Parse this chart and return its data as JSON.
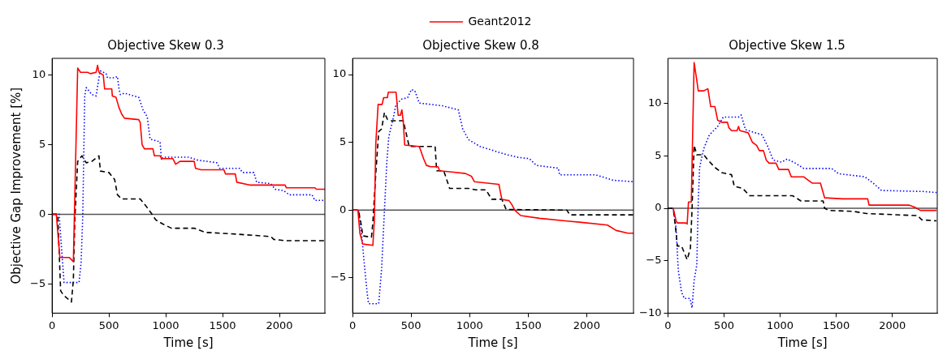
{
  "chart_data": [
    {
      "type": "line",
      "title": "Objective Skew 0.3",
      "xlabel": "Time [s]",
      "ylabel": "Objective Gap Improvement [%]",
      "xlim": [
        0,
        2400
      ],
      "xticks": [
        0,
        500,
        1000,
        1500,
        2000
      ],
      "ylim": [
        -7.1,
        11.2
      ],
      "yticks": [
        -5,
        0,
        5,
        10
      ],
      "grid": false,
      "marker": "none",
      "ref_lines": [
        {
          "axis": "y",
          "value": 0,
          "color": "#555555"
        }
      ],
      "series": [
        {
          "color": "#ff0000",
          "line_style": "solid",
          "x": [
            0,
            37,
            68,
            150,
            187,
            225,
            250,
            312,
            337,
            387,
            400,
            412,
            450,
            462,
            525,
            530,
            562,
            587,
            612,
            637,
            762,
            775,
            792,
            812,
            887,
            900,
            950,
            962,
            1062,
            1087,
            1125,
            1250,
            1262,
            1312,
            1512,
            1525,
            1612,
            1625,
            1737,
            2050,
            2062,
            2312,
            2325,
            2400
          ],
          "values": [
            0,
            0,
            -3.1,
            -3.1,
            -3.4,
            10.5,
            10.2,
            10.2,
            10.1,
            10.2,
            10.7,
            10.2,
            10.0,
            9.0,
            9.0,
            8.5,
            8.4,
            7.7,
            7.2,
            6.9,
            6.8,
            6.6,
            5.0,
            4.7,
            4.7,
            4.2,
            4.2,
            4.0,
            4.0,
            3.6,
            3.8,
            3.8,
            3.3,
            3.2,
            3.2,
            2.9,
            2.9,
            2.3,
            2.1,
            2.1,
            1.9,
            1.9,
            1.8,
            1.8
          ]
        },
        {
          "color": "#000000",
          "line_style": "dashed",
          "x": [
            0,
            50,
            75,
            100,
            170,
            187,
            200,
            225,
            262,
            300,
            350,
            412,
            425,
            500,
            550,
            575,
            612,
            775,
            825,
            875,
            912,
            975,
            1050,
            1250,
            1350,
            1575,
            1925,
            1950,
            2050,
            2400
          ],
          "values": [
            0,
            0,
            -5.5,
            -5.8,
            -6.3,
            -4.7,
            -0.4,
            3.8,
            4.2,
            3.7,
            3.8,
            4.2,
            3.1,
            3.0,
            2.5,
            1.4,
            1.1,
            1.1,
            0.6,
            0.05,
            -0.4,
            -0.7,
            -1.0,
            -1.0,
            -1.3,
            -1.4,
            -1.6,
            -1.8,
            -1.9,
            -1.9
          ]
        },
        {
          "color": "#0000ff",
          "line_style": "dotted",
          "x": [
            0,
            62,
            87,
            105,
            237,
            255,
            270,
            287,
            300,
            350,
            387,
            412,
            425,
            475,
            487,
            550,
            575,
            587,
            600,
            637,
            762,
            800,
            837,
            862,
            950,
            962,
            975,
            1200,
            1275,
            1450,
            1475,
            1650,
            1675,
            1775,
            1800,
            1925,
            1962,
            2037,
            2087,
            2287,
            2312,
            2400
          ],
          "values": [
            0,
            0,
            -2.9,
            -4.9,
            -4.9,
            -3.5,
            0,
            8.5,
            9.1,
            8.6,
            8.5,
            9.8,
            10.3,
            10.1,
            9.8,
            9.8,
            9.9,
            9.1,
            8.6,
            8.7,
            8.4,
            7.5,
            7.0,
            5.4,
            5.2,
            3.9,
            4.1,
            4.1,
            3.9,
            3.7,
            3.3,
            3.3,
            3.0,
            3.0,
            2.3,
            2.2,
            1.8,
            1.7,
            1.4,
            1.4,
            1.0,
            1.0
          ]
        }
      ]
    },
    {
      "type": "line",
      "title": "Objective Skew 0.8",
      "xlabel": "Time [s]",
      "xlim": [
        0,
        2400
      ],
      "xticks": [
        0,
        500,
        1000,
        1500,
        2000
      ],
      "ylim": [
        -7.6,
        11.2
      ],
      "yticks": [
        -5,
        0,
        5,
        10
      ],
      "grid": false,
      "marker": "none",
      "legend": "top",
      "ref_lines": [
        {
          "axis": "y",
          "value": 0,
          "color": "#555555"
        }
      ],
      "series": [
        {
          "name": "Geant2012",
          "color": "#ff0000",
          "line_style": "solid",
          "x": [
            0,
            45,
            62,
            87,
            173,
            186,
            198,
            218,
            252,
            265,
            297,
            305,
            371,
            389,
            408,
            421,
            433,
            445,
            569,
            582,
            606,
            631,
            668,
            730,
            743,
            866,
            965,
            1015,
            1040,
            1250,
            1275,
            1337,
            1361,
            1386,
            1436,
            1596,
            1831,
            1955,
            2178,
            2252,
            2351,
            2400
          ],
          "values": [
            0,
            0,
            -1.7,
            -2.5,
            -2.6,
            -0.7,
            4.9,
            7.8,
            7.8,
            8.3,
            8.3,
            8.7,
            8.7,
            7.0,
            7.0,
            7.4,
            6.5,
            4.8,
            4.7,
            4.4,
            3.8,
            3.3,
            3.2,
            3.2,
            2.9,
            2.8,
            2.7,
            2.5,
            2.1,
            1.9,
            0.8,
            0.7,
            0.4,
            0,
            -0.4,
            -0.6,
            -0.8,
            -0.9,
            -1.1,
            -1.5,
            -1.7,
            -1.7
          ]
        },
        {
          "color": "#000000",
          "line_style": "dashed",
          "x": [
            0,
            50,
            74,
            87,
            161,
            173,
            198,
            223,
            248,
            272,
            297,
            322,
            433,
            470,
            483,
            532,
            594,
            705,
            718,
            779,
            829,
            990,
            1052,
            1139,
            1188,
            1275,
            1312,
            1831,
            1856,
            2400
          ],
          "values": [
            0,
            0,
            -1.1,
            -1.9,
            -2.0,
            -0.9,
            2.7,
            5.8,
            6.0,
            7.2,
            6.7,
            6.6,
            6.6,
            5.2,
            4.7,
            4.7,
            4.7,
            4.7,
            2.9,
            2.9,
            1.6,
            1.6,
            1.5,
            1.5,
            0.8,
            0.8,
            0.05,
            0,
            -0.35,
            -0.35
          ]
        },
        {
          "color": "#0000ff",
          "line_style": "dotted",
          "x": [
            0,
            50,
            74,
            99,
            124,
            136,
            223,
            248,
            272,
            292,
            309,
            347,
            371,
            421,
            470,
            502,
            532,
            569,
            767,
            903,
            940,
            990,
            1089,
            1312,
            1411,
            1510,
            1572,
            1757,
            1769,
            2079,
            2228,
            2400
          ],
          "values": [
            0,
            0,
            -1.5,
            -3.9,
            -6.1,
            -6.9,
            -6.9,
            -4.3,
            0,
            3.5,
            5.4,
            6.8,
            7.8,
            8.2,
            8.3,
            8.9,
            8.8,
            7.9,
            7.7,
            7.4,
            6.0,
            5.2,
            4.7,
            4.1,
            3.9,
            3.8,
            3.3,
            3.1,
            2.6,
            2.6,
            2.2,
            2.1
          ]
        }
      ]
    },
    {
      "type": "line",
      "title": "Objective Skew 1.5",
      "xlabel": "Time [s]",
      "xlim": [
        0,
        2400
      ],
      "xticks": [
        0,
        500,
        1000,
        1500,
        2000
      ],
      "ylim": [
        -10,
        14.3
      ],
      "yticks": [
        -10,
        -5,
        0,
        5,
        10
      ],
      "grid": false,
      "marker": "none",
      "ref_lines": [
        {
          "axis": "y",
          "value": 0,
          "color": "#555555"
        }
      ],
      "series": [
        {
          "color": "#ff0000",
          "line_style": "solid",
          "x": [
            47,
            72,
            84,
            158,
            171,
            183,
            208,
            233,
            257,
            270,
            319,
            356,
            381,
            418,
            443,
            480,
            530,
            542,
            567,
            616,
            629,
            641,
            678,
            715,
            752,
            790,
            814,
            851,
            876,
            901,
            963,
            988,
            1074,
            1099,
            1210,
            1235,
            1285,
            1359,
            1396,
            1557,
            1780,
            1792,
            2151,
            2200,
            2250,
            2393
          ],
          "values": [
            0,
            -1.2,
            -1.4,
            -1.4,
            -1.5,
            0.6,
            0.6,
            13.9,
            12.2,
            11.2,
            11.2,
            11.4,
            9.7,
            9.7,
            8.4,
            8.2,
            8.2,
            7.7,
            7.4,
            7.4,
            7.8,
            7.4,
            7.3,
            7.2,
            6.3,
            6.0,
            5.5,
            5.5,
            4.6,
            4.3,
            4.3,
            3.7,
            3.7,
            3.0,
            3.0,
            2.8,
            2.4,
            2.4,
            1.0,
            0.9,
            0.9,
            0.3,
            0.3,
            0.1,
            -0.2,
            -0.2
          ]
        },
        {
          "color": "#000000",
          "line_style": "dashed",
          "x": [
            0,
            47,
            67,
            84,
            121,
            171,
            200,
            215,
            233,
            257,
            319,
            356,
            418,
            480,
            567,
            591,
            666,
            728,
            1111,
            1185,
            1383,
            1396,
            1433,
            1656,
            1767,
            2225,
            2262,
            2393
          ],
          "values": [
            0,
            0,
            -1.8,
            -3.6,
            -3.6,
            -4.9,
            -3.8,
            0,
            6.0,
            5.1,
            5.1,
            4.6,
            3.9,
            3.4,
            3.2,
            2.1,
            1.9,
            1.2,
            1.2,
            0.7,
            0.7,
            0,
            -0.2,
            -0.3,
            -0.5,
            -0.7,
            -1.1,
            -1.2
          ]
        },
        {
          "color": "#0000ff",
          "line_style": "dotted",
          "x": [
            0,
            47,
            72,
            92,
            121,
            146,
            196,
            215,
            233,
            257,
            270,
            282,
            319,
            369,
            443,
            493,
            629,
            653,
            690,
            839,
            889,
            938,
            1012,
            1062,
            1136,
            1210,
            1458,
            1520,
            1755,
            1829,
            1903,
            2275,
            2393
          ],
          "values": [
            0,
            0,
            -1.8,
            -5.9,
            -8.0,
            -8.6,
            -8.6,
            -9.5,
            -6.9,
            -5.4,
            0.6,
            3.9,
            5.7,
            7.0,
            7.8,
            8.7,
            8.7,
            8.9,
            7.5,
            7.0,
            5.9,
            4.6,
            4.4,
            4.7,
            4.3,
            3.8,
            3.8,
            3.3,
            3.0,
            2.4,
            1.7,
            1.6,
            1.5
          ]
        }
      ]
    }
  ]
}
